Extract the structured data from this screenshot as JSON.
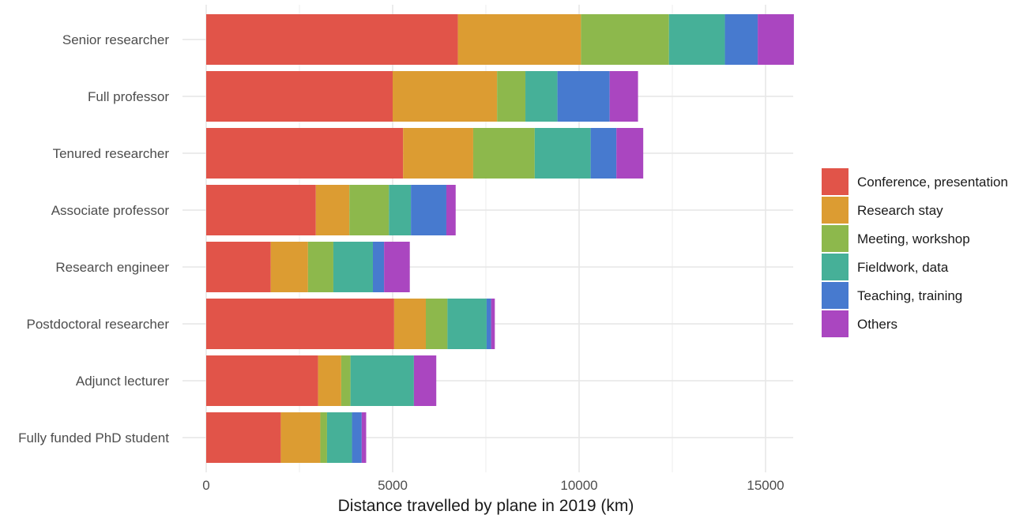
{
  "chart_data": {
    "type": "bar",
    "orientation": "horizontal",
    "stacked": true,
    "title": "",
    "xlabel": "Distance travelled by plane in 2019 (km)",
    "ylabel": "",
    "xlim": [
      0,
      15800
    ],
    "x_ticks": [
      0,
      5000,
      10000,
      15000
    ],
    "x_tick_labels": [
      "0",
      "5000",
      "10000",
      "15000"
    ],
    "grid": true,
    "legend_position": "right",
    "categories": [
      "Senior researcher",
      "Full professor",
      "Tenured researcher",
      "Associate professor",
      "Research engineer",
      "Postdoctoral researcher",
      "Adjunct lecturer",
      "Fully funded PhD student"
    ],
    "series": [
      {
        "name": "Conference, presentation",
        "color": "#E15449",
        "values": [
          6750,
          5000,
          5280,
          2940,
          1730,
          5040,
          3000,
          2000
        ]
      },
      {
        "name": "Research stay",
        "color": "#DC9C32",
        "values": [
          3300,
          2800,
          1880,
          900,
          1000,
          850,
          620,
          1060
        ]
      },
      {
        "name": "Meeting, workshop",
        "color": "#8DB84C",
        "values": [
          2360,
          760,
          1650,
          1060,
          680,
          580,
          250,
          180
        ]
      },
      {
        "name": "Fieldwork, data",
        "color": "#46B098",
        "values": [
          1500,
          860,
          1500,
          590,
          1060,
          1050,
          1700,
          670
        ]
      },
      {
        "name": "Teaching, training",
        "color": "#477ACF",
        "values": [
          880,
          1400,
          690,
          950,
          300,
          120,
          0,
          260
        ]
      },
      {
        "name": "Others",
        "color": "#AA46C0",
        "values": [
          970,
          760,
          720,
          250,
          690,
          100,
          600,
          120
        ]
      }
    ]
  }
}
